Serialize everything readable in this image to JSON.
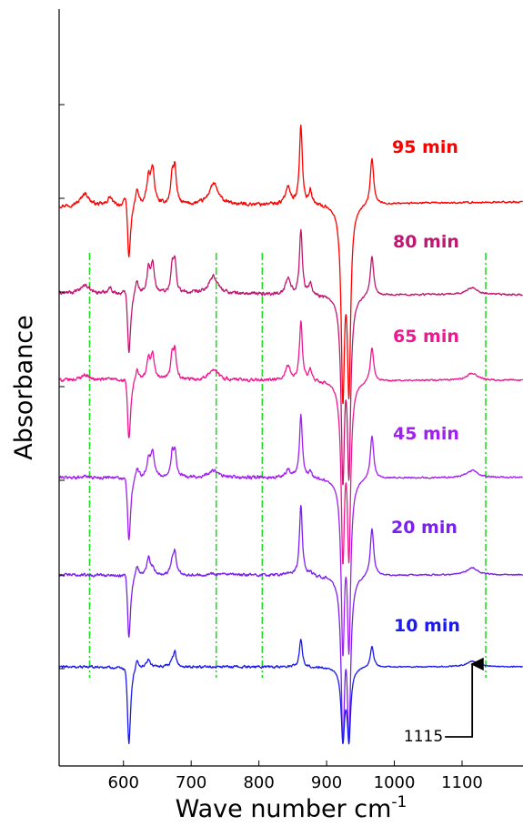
{
  "chart_data": {
    "type": "line",
    "xlabel": "Wave number cm",
    "xlabel_superscript": "-1",
    "ylabel": "Absorbance",
    "xlim": [
      505,
      1190
    ],
    "x_ticks": [
      600,
      700,
      800,
      900,
      1000,
      1100
    ],
    "x_tick_labels": [
      "600",
      "700",
      "800",
      "900",
      "1000",
      "1100"
    ],
    "grid": false,
    "reference_lines": [
      550,
      737,
      805,
      1135
    ],
    "peaks": [
      {
        "x": 543,
        "w": 7
      },
      {
        "x": 580,
        "w": 4
      },
      {
        "x": 604,
        "w": 3.5
      },
      {
        "x": 620,
        "w": 3
      },
      {
        "x": 637,
        "w": 3
      },
      {
        "x": 643,
        "w": 3
      },
      {
        "x": 672,
        "w": 2.5
      },
      {
        "x": 676,
        "w": 2.5
      },
      {
        "x": 733,
        "w": 8
      },
      {
        "x": 843,
        "w": 4
      },
      {
        "x": 862,
        "w": 2.5
      },
      {
        "x": 876,
        "w": 2.5
      },
      {
        "x": 967,
        "w": 3
      },
      {
        "x": 1115,
        "w": 10
      }
    ],
    "dips": [
      {
        "x": 608,
        "w": 3
      },
      {
        "x": 924,
        "w": 3
      },
      {
        "x": 933,
        "w": 3
      }
    ],
    "series": [
      {
        "name": "95 min",
        "color": "#ff0000",
        "noise": 0.05,
        "peak_heights": [
          0.45,
          0.3,
          0.8,
          0.6,
          0.9,
          1.3,
          1.0,
          1.2,
          0.75,
          0.65,
          2.8,
          0.5,
          1.65,
          0.0
        ],
        "dip_depths": [
          2.2,
          6.5,
          6.3
        ],
        "ends": [
          -0.15,
          0.0
        ]
      },
      {
        "name": "80 min",
        "color": "#c01870",
        "noise": 0.05,
        "peak_heights": [
          0.3,
          0.2,
          0.7,
          0.5,
          0.8,
          1.0,
          0.9,
          1.05,
          0.6,
          0.55,
          2.3,
          0.4,
          1.4,
          0.25
        ],
        "dip_depths": [
          2.4,
          6.2,
          6.0
        ],
        "ends": [
          0.05,
          0.0
        ]
      },
      {
        "name": "65 min",
        "color": "#f01890",
        "noise": 0.045,
        "peak_heights": [
          0.2,
          0.1,
          0.6,
          0.45,
          0.7,
          0.9,
          0.8,
          0.95,
          0.4,
          0.5,
          2.1,
          0.35,
          1.2,
          0.25
        ],
        "dip_depths": [
          2.4,
          6.0,
          5.9
        ],
        "ends": [
          0.0,
          0.0
        ]
      },
      {
        "name": "45 min",
        "color": "#a020f0",
        "noise": 0.045,
        "peak_heights": [
          0.05,
          0.05,
          0.55,
          0.4,
          0.6,
          0.9,
          0.75,
          0.9,
          0.25,
          0.3,
          2.2,
          0.25,
          1.55,
          0.25
        ],
        "dip_depths": [
          2.5,
          5.8,
          5.7
        ],
        "ends": [
          0.0,
          0.0
        ]
      },
      {
        "name": "20 min",
        "color": "#7b20f0",
        "noise": 0.04,
        "peak_heights": [
          0.0,
          0.0,
          0.7,
          0.4,
          0.6,
          0.2,
          0.5,
          0.75,
          0.05,
          0.05,
          2.5,
          0.1,
          1.7,
          0.25
        ],
        "dip_depths": [
          2.5,
          5.5,
          5.4
        ],
        "ends": [
          0.0,
          0.0
        ]
      },
      {
        "name": "10 min",
        "color": "#1a1aee",
        "noise": 0.035,
        "peak_heights": [
          0.0,
          0.0,
          0.6,
          0.35,
          0.3,
          0.0,
          0.2,
          0.5,
          0.0,
          0.0,
          1.0,
          0.0,
          0.75,
          0.2
        ],
        "dip_depths": [
          3.0,
          2.5,
          2.5
        ],
        "ends": [
          0.0,
          0.0
        ]
      }
    ],
    "annotation": {
      "text": "1115",
      "x": 1115
    }
  }
}
